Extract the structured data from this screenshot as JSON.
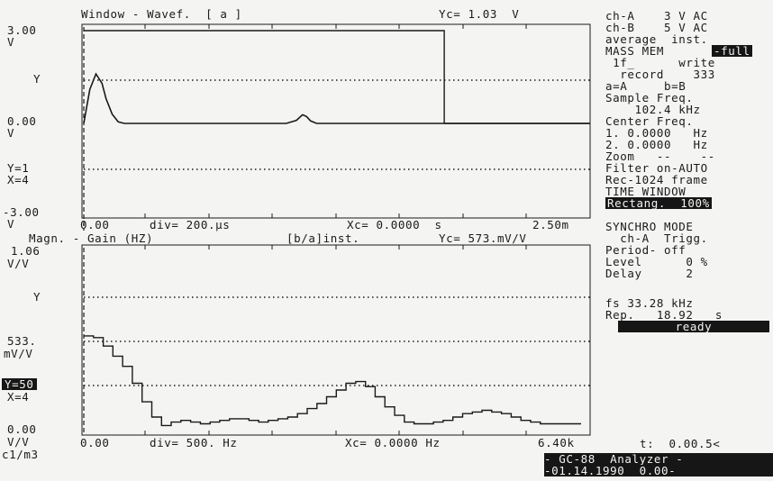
{
  "top": {
    "title": "Window - Wavef.  [ a ]",
    "cursor": "Yc= 1.03  V",
    "y_top": "3.00",
    "y_top_unit": "V",
    "y_marker": "Y",
    "y_mid": "0.00",
    "y_mid_unit": "V",
    "y1": "Y=1",
    "x4": "X=4",
    "y_bot": "-3.00",
    "y_bot_unit": "V",
    "x_start": "0.00",
    "xdiv": "div= 200.µs",
    "xc": "Xc= 0.0000  s",
    "x_end": "2.50m"
  },
  "bottom": {
    "title": "Magn. - Gain (HZ)",
    "mode": "[b/a]inst.",
    "cursor": "Yc= 573.mV/V",
    "y_top": "1.06",
    "y_top_unit": "V/V",
    "y_marker": "Y",
    "y_mid": "533.",
    "y_mid_unit": "mV/V",
    "y50": "Y=50",
    "x4": "X=4",
    "y_bot": "0.00",
    "y_bot_unit": "V/V",
    "units_note": "c1/m3",
    "x_start": "0.00",
    "xdiv": "div= 500. Hz",
    "xc": "Xc= 0.0000 Hz",
    "x_end": "6.40k"
  },
  "side": {
    "ch_a": "ch-A    3 V AC",
    "ch_b": "ch-B    5 V AC",
    "average": "average  inst.",
    "mass_mem": "MASS MEM",
    "mass_mode": "-full",
    "file": " 1f_      write",
    "record": "  record    333",
    "ab": "a=A     b=B",
    "sample_label": "Sample Freq.",
    "sample_value": "    102.4 kHz",
    "center_label": "Center Freq.",
    "center1": "1. 0.0000   Hz",
    "center2": "2. 0.0000   Hz",
    "zoom": "Zoom   --    --",
    "filter": "Filter on-AUTO",
    "rec": "Rec-1024 frame",
    "time_window": "TIME WINDOW",
    "window_type": "Rectang.  100%",
    "synchro_mode": "SYNCHRO MODE",
    "synchro_ch": "  ch-A  Trigg.",
    "period": "Period- off",
    "level": "Level      0 %",
    "delay": "Delay      2",
    "fs": "fs 33.28 kHz",
    "rep": "Rep.   18.92   s",
    "status": "ready",
    "time": "t:  0.00.5<",
    "brand": "- GC-88  Analyzer -",
    "date": "-01.14.1990  0.00-"
  },
  "chart_data": [
    {
      "type": "line",
      "title": "Window - Wavef.  [ a ]",
      "ylabel": "V",
      "ylim": [
        -3.0,
        3.0
      ],
      "xlim": [
        0,
        2.5
      ],
      "x_unit": "ms",
      "series": [
        {
          "name": "Wavef.",
          "x": [
            0.0,
            0.03,
            0.06,
            0.09,
            0.11,
            0.14,
            0.17,
            0.2,
            0.5,
            0.9,
            1.0,
            1.05,
            1.08,
            1.1,
            1.12,
            1.15,
            1.2,
            1.6,
            2.0,
            2.5
          ],
          "values": [
            0.0,
            1.1,
            1.6,
            1.3,
            0.8,
            0.3,
            0.05,
            0.0,
            0.0,
            0.0,
            0.0,
            0.1,
            0.28,
            0.22,
            0.08,
            0.0,
            0.0,
            0.0,
            0.0,
            0.0
          ]
        },
        {
          "name": "Window",
          "x": [
            0.0,
            1.78,
            1.78,
            2.5
          ],
          "values": [
            3.0,
            3.0,
            0.0,
            0.0
          ]
        }
      ],
      "grid": true
    },
    {
      "type": "line",
      "title": "Magn. - Gain (HZ)",
      "ylabel": "V/V",
      "ylim": [
        0,
        1.066
      ],
      "xlim": [
        0,
        6400
      ],
      "x_unit": "Hz",
      "series": [
        {
          "name": "[b/a]inst.",
          "x": [
            0,
            125,
            250,
            375,
            500,
            625,
            750,
            875,
            1000,
            1125,
            1250,
            1375,
            1500,
            1625,
            1750,
            1875,
            2000,
            2125,
            2250,
            2375,
            2500,
            2625,
            2750,
            2875,
            3000,
            3125,
            3250,
            3375,
            3500,
            3625,
            3750,
            3875,
            4000,
            4125,
            4250,
            4375,
            4500,
            4625,
            4750,
            4875,
            5000,
            5125,
            5250,
            5375,
            5500,
            5625,
            5750,
            5875,
            6000,
            6125,
            6250,
            6400
          ],
          "values": [
            0.56,
            0.55,
            0.5,
            0.44,
            0.38,
            0.28,
            0.17,
            0.08,
            0.03,
            0.05,
            0.06,
            0.05,
            0.04,
            0.05,
            0.06,
            0.07,
            0.07,
            0.06,
            0.05,
            0.06,
            0.07,
            0.08,
            0.1,
            0.13,
            0.16,
            0.2,
            0.24,
            0.28,
            0.29,
            0.26,
            0.2,
            0.14,
            0.09,
            0.05,
            0.04,
            0.04,
            0.05,
            0.06,
            0.08,
            0.1,
            0.11,
            0.12,
            0.11,
            0.1,
            0.08,
            0.06,
            0.05,
            0.04,
            0.04,
            0.04,
            0.04,
            0.04
          ]
        }
      ],
      "grid": true
    }
  ]
}
